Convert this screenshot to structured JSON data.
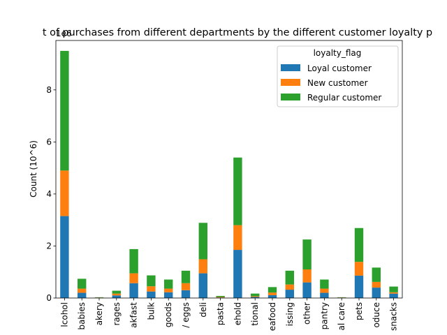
{
  "chart_data": {
    "type": "bar",
    "stacked": true,
    "title": "t of purchases from different departments by the different customer loyalty p",
    "xlabel": "",
    "ylabel": "Count (10^6)",
    "offset_text": "1e6",
    "ylim": [
      0,
      9.9
    ],
    "yticks": [
      0,
      2,
      4,
      6,
      8
    ],
    "grid": false,
    "categories": [
      "lcohol",
      "babies",
      "akery",
      "rages",
      "akfast",
      "bulk",
      "goods",
      "/ eggs",
      "deli",
      "pasta",
      "ehold",
      "tional",
      "eafood",
      "issing",
      "other",
      "pantry",
      "al care",
      "pets",
      "oduce",
      "snacks"
    ],
    "legend": {
      "title": "loyalty_flag",
      "position": "top-right"
    },
    "series": [
      {
        "name": "Loyal customer",
        "color": "#1f77b4",
        "values": [
          3.15,
          0.2,
          0.01,
          0.1,
          0.57,
          0.25,
          0.22,
          0.3,
          0.95,
          0.02,
          1.85,
          0.04,
          0.11,
          0.32,
          0.6,
          0.2,
          0.01,
          0.86,
          0.4,
          0.17
        ]
      },
      {
        "name": "New customer",
        "color": "#ff7f0e",
        "values": [
          1.75,
          0.16,
          0.01,
          0.07,
          0.38,
          0.2,
          0.14,
          0.27,
          0.54,
          0.02,
          0.95,
          0.03,
          0.1,
          0.2,
          0.5,
          0.16,
          0.01,
          0.53,
          0.22,
          0.05
        ]
      },
      {
        "name": "Regular customer",
        "color": "#2ca02c",
        "values": [
          4.6,
          0.38,
          0.01,
          0.11,
          0.93,
          0.42,
          0.35,
          0.48,
          1.4,
          0.04,
          2.6,
          0.1,
          0.21,
          0.53,
          1.15,
          0.35,
          0.01,
          1.3,
          0.55,
          0.22
        ]
      }
    ]
  }
}
